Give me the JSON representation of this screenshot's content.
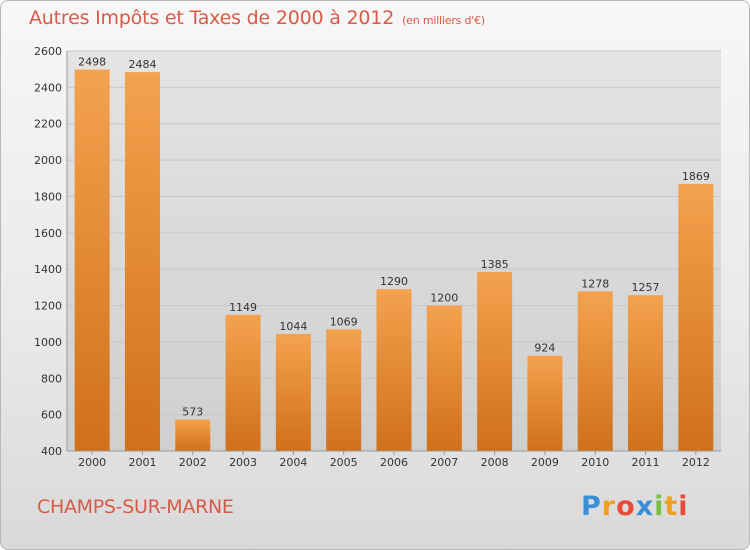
{
  "title": "Autres Impôts et Taxes de 2000 à 2012",
  "unit_note": "(en milliers d'€)",
  "commune": "CHAMPS-SUR-MARNE",
  "logo": {
    "letters": [
      "P",
      "r",
      "o",
      "x",
      "i",
      "t",
      "i"
    ],
    "colors": [
      "#3a8fd6",
      "#f0a020",
      "#e84b3a",
      "#3a8fd6",
      "#7ac143",
      "#f0a020",
      "#e84b3a"
    ]
  },
  "colors": {
    "bar_top": "#f4a24e",
    "bar_bottom": "#d0701a",
    "title": "#d85a48",
    "grid": "#c8c8c8"
  },
  "chart_data": {
    "type": "bar",
    "categories": [
      "2000",
      "2001",
      "2002",
      "2003",
      "2004",
      "2005",
      "2006",
      "2007",
      "2008",
      "2009",
      "2010",
      "2011",
      "2012"
    ],
    "values": [
      2498,
      2484,
      573,
      1149,
      1044,
      1069,
      1290,
      1200,
      1385,
      924,
      1278,
      1257,
      1869
    ],
    "ylim": [
      400,
      2600
    ],
    "yticks": [
      400,
      600,
      800,
      1000,
      1200,
      1400,
      1600,
      1800,
      2000,
      2200,
      2400,
      2600
    ],
    "grid": true,
    "title": "Autres Impôts et Taxes de 2000 à 2012",
    "xlabel": "",
    "ylabel": ""
  }
}
